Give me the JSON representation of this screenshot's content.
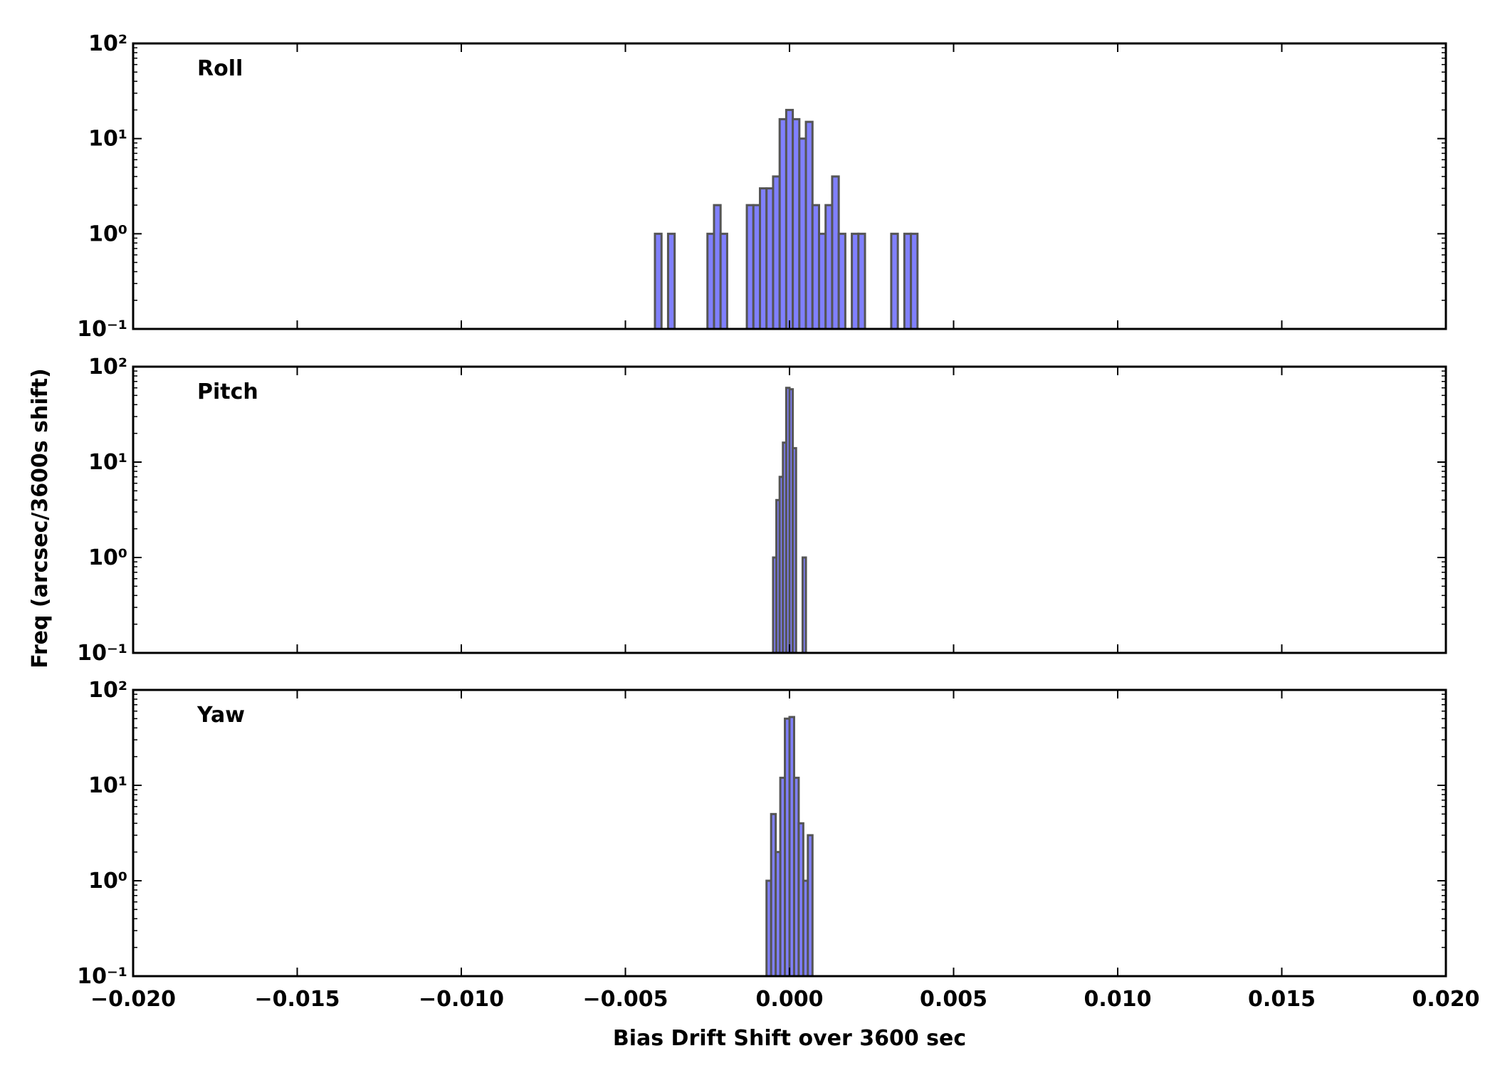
{
  "chart_data": [
    {
      "type": "histogram",
      "title": "Roll",
      "color": "#8080ff",
      "edgecolor": "#555555",
      "log_y": true,
      "bins": [
        -0.0041,
        -0.0039,
        -0.0037,
        -0.0035,
        -0.0033,
        -0.0031,
        -0.0029,
        -0.0027,
        -0.0025,
        -0.0023,
        -0.0021,
        -0.0019,
        -0.0017,
        -0.0015,
        -0.0013,
        -0.0011,
        -0.0009,
        -0.0007,
        -0.0005,
        -0.0003,
        -0.0001,
        0.0001,
        0.0003,
        0.0005,
        0.0007,
        0.0009,
        0.0011,
        0.0013,
        0.0015,
        0.0017,
        0.0019,
        0.0021,
        0.0023,
        0.0025,
        0.0027,
        0.0029,
        0.0031,
        0.0033,
        0.0035,
        0.0037,
        0.0039
      ],
      "values": [
        1,
        0,
        1,
        0,
        0,
        0,
        0,
        0,
        1,
        2,
        1,
        0,
        0,
        0,
        2,
        2,
        3,
        3,
        4,
        16,
        20,
        16,
        10,
        15,
        2,
        1,
        2,
        4,
        1,
        0,
        1,
        1,
        0,
        0,
        0,
        0,
        1,
        0,
        1,
        1
      ],
      "xlim": [
        -0.02,
        0.02
      ],
      "xticks": [
        -0.02,
        -0.015,
        -0.01,
        -0.005,
        0,
        0.005,
        0.01,
        0.015,
        0.02
      ],
      "ylim": [
        0.1,
        100
      ],
      "yticks": [
        {
          "value": 0.1,
          "label": "10⁻¹"
        },
        {
          "value": 1,
          "label": "10⁰"
        },
        {
          "value": 10,
          "label": "10¹"
        },
        {
          "value": 100,
          "label": "10²"
        }
      ]
    },
    {
      "type": "histogram",
      "title": "Pitch",
      "color": "#8080ff",
      "edgecolor": "#555555",
      "log_y": true,
      "ylabel": "Freq (arcsec/3600s shift)",
      "bins": [
        -0.0005,
        -0.0004,
        -0.0003,
        -0.0002,
        -0.0001,
        0,
        0.0001,
        0.0002,
        0.0003,
        0.0004,
        0.0005
      ],
      "values": [
        1,
        4,
        7,
        16,
        60,
        58,
        14,
        0,
        0,
        1
      ],
      "xlim": [
        -0.02,
        0.02
      ],
      "xticks": [
        -0.02,
        -0.015,
        -0.01,
        -0.005,
        0,
        0.005,
        0.01,
        0.015,
        0.02
      ],
      "ylim": [
        0.1,
        100
      ],
      "yticks": [
        {
          "value": 0.1,
          "label": "10⁻¹"
        },
        {
          "value": 1,
          "label": "10⁰"
        },
        {
          "value": 10,
          "label": "10¹"
        },
        {
          "value": 100,
          "label": "10²"
        }
      ]
    },
    {
      "type": "histogram",
      "title": "Yaw",
      "color": "#8080ff",
      "edgecolor": "#555555",
      "log_y": true,
      "xlabel": "Bias Drift Shift over 3600 sec",
      "bins": [
        -0.0007,
        -0.00056,
        -0.00042,
        -0.00028,
        -0.00014,
        0,
        0.00014,
        0.00028,
        0.00042,
        0.00056,
        0.0007
      ],
      "values": [
        1,
        5,
        2,
        12,
        50,
        52,
        12,
        4,
        1,
        3
      ],
      "xlim": [
        -0.02,
        0.02
      ],
      "xticks": [
        {
          "value": -0.02,
          "label": "−0.020"
        },
        {
          "value": -0.015,
          "label": "−0.015"
        },
        {
          "value": -0.01,
          "label": "−0.010"
        },
        {
          "value": -0.005,
          "label": "−0.005"
        },
        {
          "value": 0,
          "label": "0.000"
        },
        {
          "value": 0.005,
          "label": "0.005"
        },
        {
          "value": 0.01,
          "label": "0.010"
        },
        {
          "value": 0.015,
          "label": "0.015"
        },
        {
          "value": 0.02,
          "label": "0.020"
        }
      ],
      "ylim": [
        0.1,
        100
      ],
      "yticks": [
        {
          "value": 0.1,
          "label": "10⁻¹"
        },
        {
          "value": 1,
          "label": "10⁰"
        },
        {
          "value": 10,
          "label": "10¹"
        },
        {
          "value": 100,
          "label": "10²"
        }
      ]
    }
  ]
}
